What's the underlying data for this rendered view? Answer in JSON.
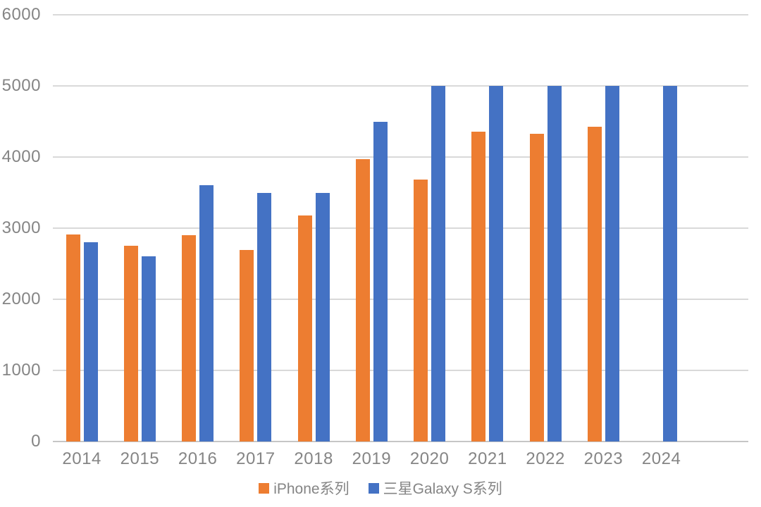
{
  "chart_data": {
    "type": "bar",
    "categories": [
      "2014",
      "2015",
      "2016",
      "2017",
      "2018",
      "2019",
      "2020",
      "2021",
      "2022",
      "2023",
      "2024"
    ],
    "series": [
      {
        "name": "iPhone系列",
        "color": "#ED7D31",
        "values": [
          2915,
          2750,
          2900,
          2691,
          3174,
          3969,
          3687,
          4352,
          4323,
          4422,
          null
        ]
      },
      {
        "name": "三星Galaxy S系列",
        "color": "#4472C4",
        "values": [
          2800,
          2600,
          3600,
          3500,
          3500,
          4500,
          5000,
          5000,
          5000,
          5000,
          5000
        ]
      }
    ],
    "title": "",
    "xlabel": "",
    "ylabel": "",
    "ylim": [
      0,
      6000
    ],
    "yticks": [
      0,
      1000,
      2000,
      3000,
      4000,
      5000,
      6000
    ],
    "grid": true,
    "legend_position": "bottom",
    "x_axis_extra_empty_slot": true
  },
  "colors": {
    "gridline": "#D9D9D9",
    "axis_line": "#C6C6C6",
    "tick_label": "#858585",
    "legend_text": "#858585",
    "background": "#FFFFFF"
  }
}
